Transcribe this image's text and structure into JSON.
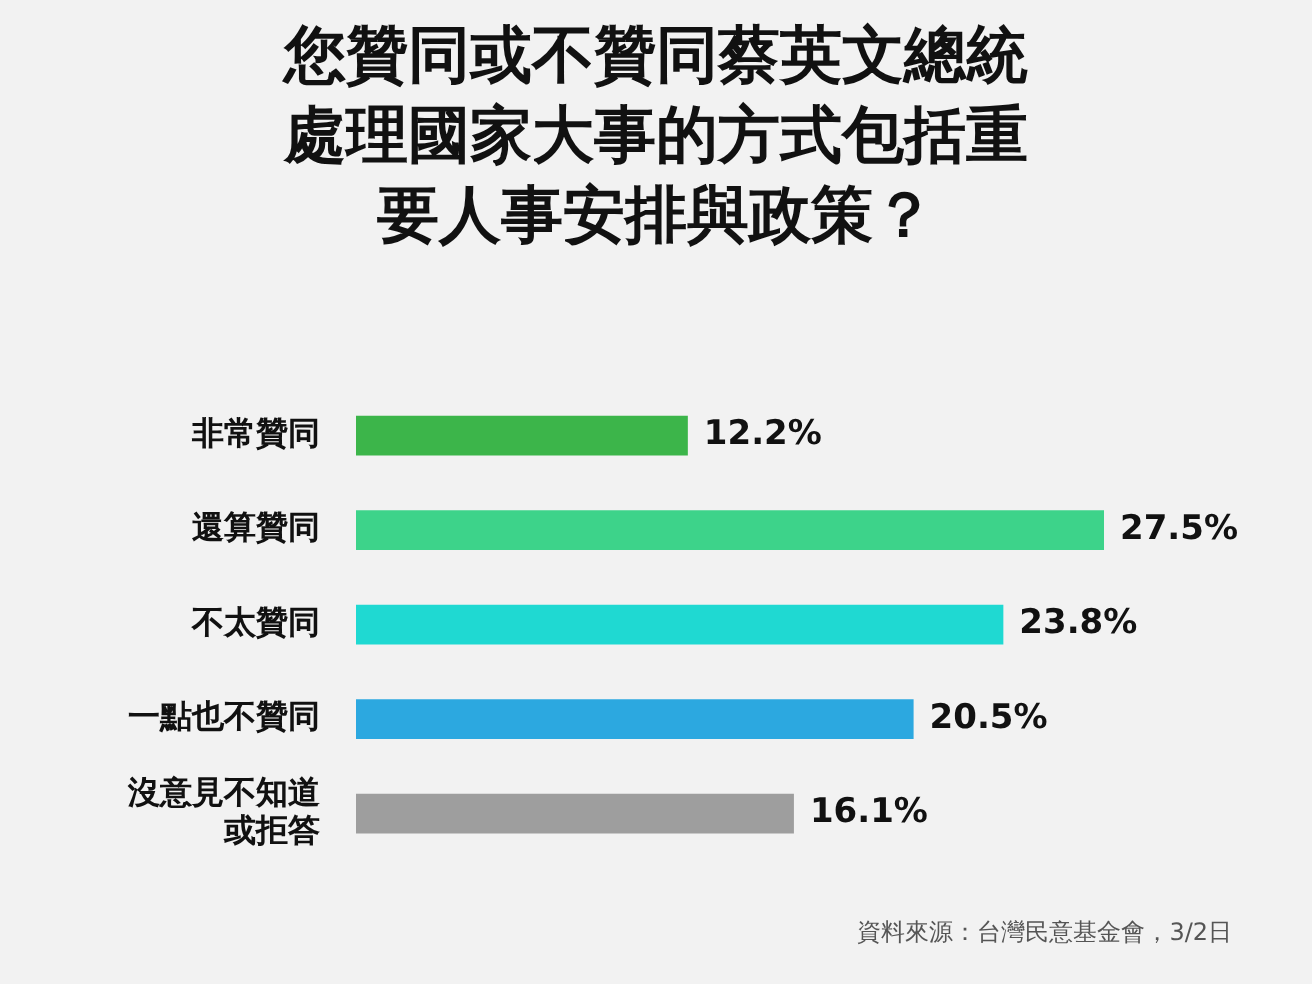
{
  "chart_data": {
    "type": "bar",
    "orientation": "horizontal",
    "title": "您贊同或不贊同蔡英文總統處理國家大事的方式包括重要人事安排與政策？",
    "categories": [
      "非常贊同",
      "還算贊同",
      "不太贊同",
      "一點也不贊同",
      "沒意見不知道或拒答"
    ],
    "values": [
      12.2,
      27.5,
      23.8,
      20.5,
      16.1
    ],
    "colors": [
      "#3cb54a",
      "#3dd38a",
      "#1fd9d2",
      "#2ca8e0",
      "#9e9e9e"
    ],
    "value_labels": [
      "12.2%",
      "27.5%",
      "23.8%",
      "20.5%",
      "16.1%"
    ],
    "tick_labels": "y",
    "legend": false,
    "annotations": [
      "資料來源：台灣民意基金會，3/2日"
    ]
  }
}
